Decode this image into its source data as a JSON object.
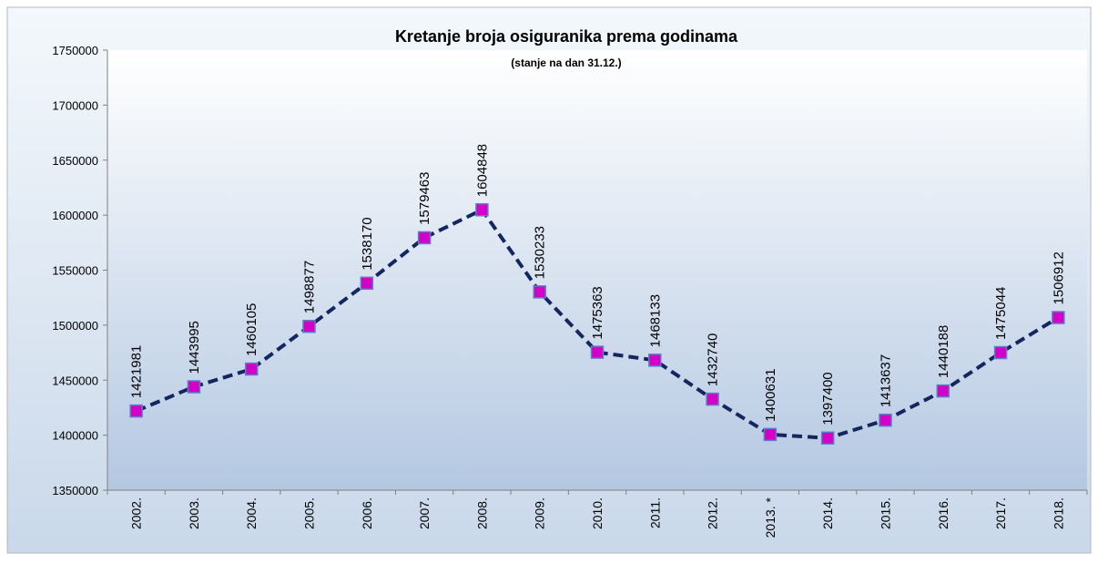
{
  "chart_data": {
    "type": "line",
    "title": "Kretanje broja osiguranika prema godinama",
    "subtitle": "(stanje na dan 31.12.)",
    "categories": [
      "2002.",
      "2003.",
      "2004.",
      "2005.",
      "2006.",
      "2007.",
      "2008.",
      "2009.",
      "2010.",
      "2011.",
      "2012.",
      "2013. *",
      "2014.",
      "2015.",
      "2016.",
      "2017.",
      "2018."
    ],
    "values": [
      1421981,
      1443995,
      1460105,
      1498877,
      1538170,
      1579463,
      1604848,
      1530233,
      1475363,
      1468133,
      1432740,
      1400631,
      1397400,
      1413637,
      1440188,
      1475044,
      1506912
    ],
    "color": "#13275e",
    "marker_color": "#d400c8",
    "ylim": [
      1350000,
      1750000
    ],
    "yticks": [
      1350000,
      1400000,
      1450000,
      1500000,
      1550000,
      1600000,
      1650000,
      1700000,
      1750000
    ],
    "grid": false
  }
}
